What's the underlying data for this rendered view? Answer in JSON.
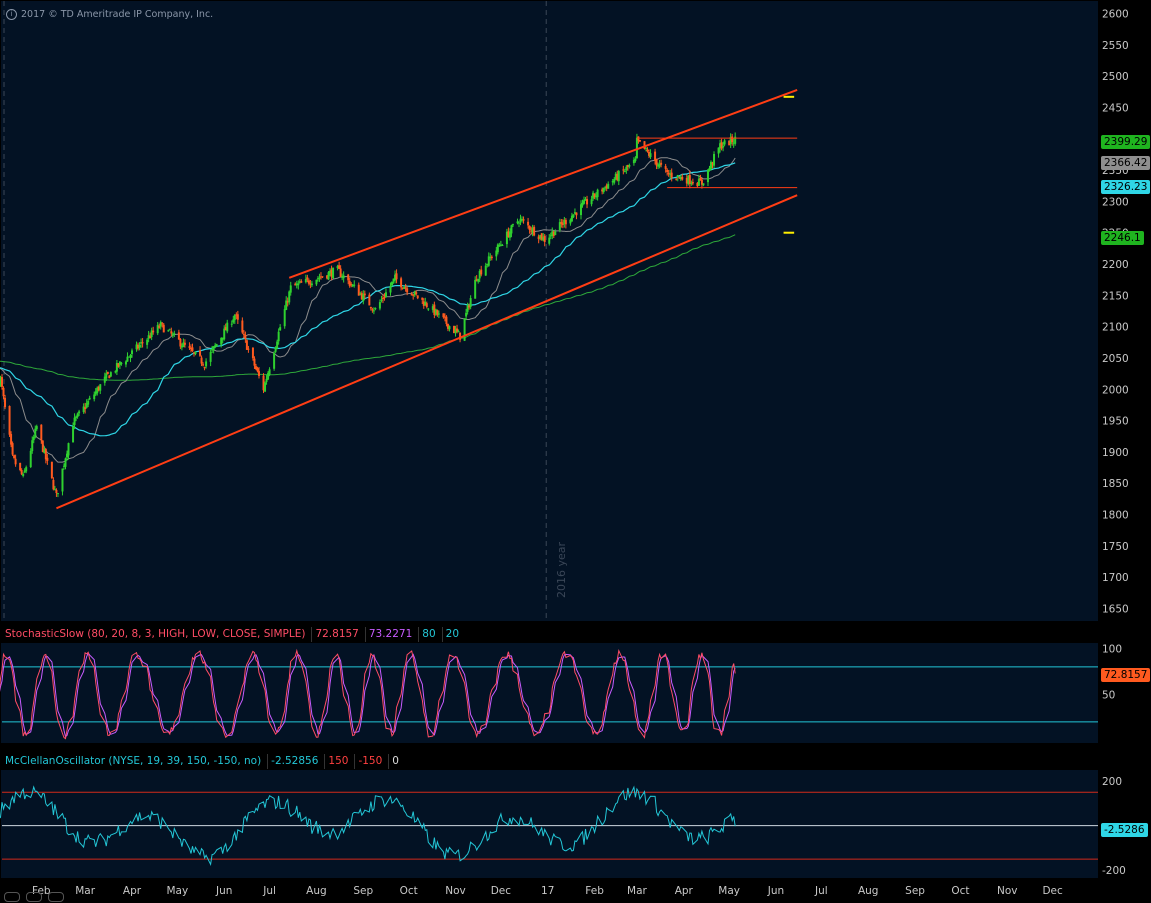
{
  "header": {
    "copyright_icon": "info-circle-icon",
    "copyright": "2017 © TD Ameritrade IP Company, Inc.",
    "watermark": "2016 year"
  },
  "colors": {
    "background": "#031224",
    "up_candle": "#2fd12f",
    "down_candle": "#ff5a1f",
    "sma_gray": "#8c8c8c",
    "sma_cyan": "#2fd6e6",
    "sma_green": "#2ea83a",
    "trendline": "#ff3d14",
    "stoch_k": "#ff4d66",
    "stoch_d": "#c75cff",
    "ref_line": "#23c6d6",
    "mcclellan": "#23c6d6",
    "band": "#d12a1a",
    "highlight": "#ffee00"
  },
  "chart_data": [
    {
      "type": "candlestick",
      "title": "",
      "x_labels": [
        "Feb",
        "Mar",
        "Apr",
        "May",
        "Jun",
        "Jul",
        "Aug",
        "Sep",
        "Oct",
        "Nov",
        "Dec",
        "17",
        "Feb",
        "Mar",
        "Apr",
        "May",
        "Jun",
        "Jul",
        "Aug",
        "Sep",
        "Oct",
        "Nov",
        "Dec"
      ],
      "x_domain": [
        "2016-01-06",
        "2017-12-31"
      ],
      "y_ticks": [
        2600,
        2550,
        2500,
        2450,
        2400,
        2350,
        2300,
        2250,
        2200,
        2150,
        2100,
        2050,
        2000,
        1950,
        1900,
        1850,
        1800,
        1750,
        1700,
        1650
      ],
      "ylim": [
        1630,
        2620
      ],
      "close_anchors": [
        [
          "2016-01-05",
          2016
        ],
        [
          "2016-01-13",
          1890
        ],
        [
          "2016-01-20",
          1859
        ],
        [
          "2016-01-29",
          1940
        ],
        [
          "2016-02-11",
          1829
        ],
        [
          "2016-02-22",
          1946
        ],
        [
          "2016-03-15",
          2019
        ],
        [
          "2016-04-20",
          2102
        ],
        [
          "2016-05-19",
          2041
        ],
        [
          "2016-06-08",
          2119
        ],
        [
          "2016-06-27",
          2001
        ],
        [
          "2016-07-15",
          2162
        ],
        [
          "2016-08-15",
          2190
        ],
        [
          "2016-09-09",
          2127
        ],
        [
          "2016-09-22",
          2177
        ],
        [
          "2016-10-14",
          2133
        ],
        [
          "2016-11-04",
          2085
        ],
        [
          "2016-11-15",
          2180
        ],
        [
          "2016-12-13",
          2272
        ],
        [
          "2016-12-30",
          2239
        ],
        [
          "2017-01-26",
          2297
        ],
        [
          "2017-02-28",
          2364
        ],
        [
          "2017-03-01",
          2396
        ],
        [
          "2017-03-21",
          2344
        ],
        [
          "2017-04-13",
          2329
        ],
        [
          "2017-04-25",
          2389
        ],
        [
          "2017-05-05",
          2399
        ]
      ],
      "last_price": 2399.29,
      "moving_averages": [
        {
          "color": "#8c8c8c",
          "last": 2366.42
        },
        {
          "color": "#2fd6e6",
          "last": 2326.23
        },
        {
          "color": "#2ea83a",
          "last": 2246.1
        }
      ],
      "trendlines": [
        {
          "from": [
            "2016-02-11",
            1810
          ],
          "to": [
            "2017-06-15",
            2310
          ]
        },
        {
          "from": [
            "2016-07-14",
            2178
          ],
          "to": [
            "2017-06-15",
            2478
          ]
        }
      ],
      "price_labels": [
        {
          "text": "2399.29",
          "kind": "last",
          "bg": "#1fb41f"
        },
        {
          "text": "2366.42",
          "kind": "ma-gray",
          "bg": "#8f8f8f"
        },
        {
          "text": "2326.23",
          "kind": "ma-cyan",
          "bg": "#2fd6e6"
        },
        {
          "text": "2246.1",
          "kind": "ma-green",
          "bg": "#1fb41f"
        }
      ]
    },
    {
      "type": "line",
      "title": "StochasticSlow",
      "header": [
        "StochasticSlow (80, 20, 8, 3, HIGH, LOW, CLOSE, SIMPLE)",
        "72.8157",
        "73.2271",
        "80",
        "20"
      ],
      "y_ticks": [
        100,
        50
      ],
      "ylim": [
        -3,
        106
      ],
      "levels": [
        80,
        20
      ],
      "last_value": 72.8157,
      "last_label": "72.8157"
    },
    {
      "type": "line",
      "title": "McClellanOscillator",
      "header": [
        "McClellanOscillator (NYSE, 19, 39, 150, -150, no)",
        "-2.52856",
        "150",
        "-150",
        "0"
      ],
      "y_ticks": [
        200,
        -200
      ],
      "ylim": [
        -235,
        250
      ],
      "levels": [
        150,
        -150,
        0
      ],
      "last_value": -2.5286,
      "last_label": "-2.5286"
    }
  ]
}
